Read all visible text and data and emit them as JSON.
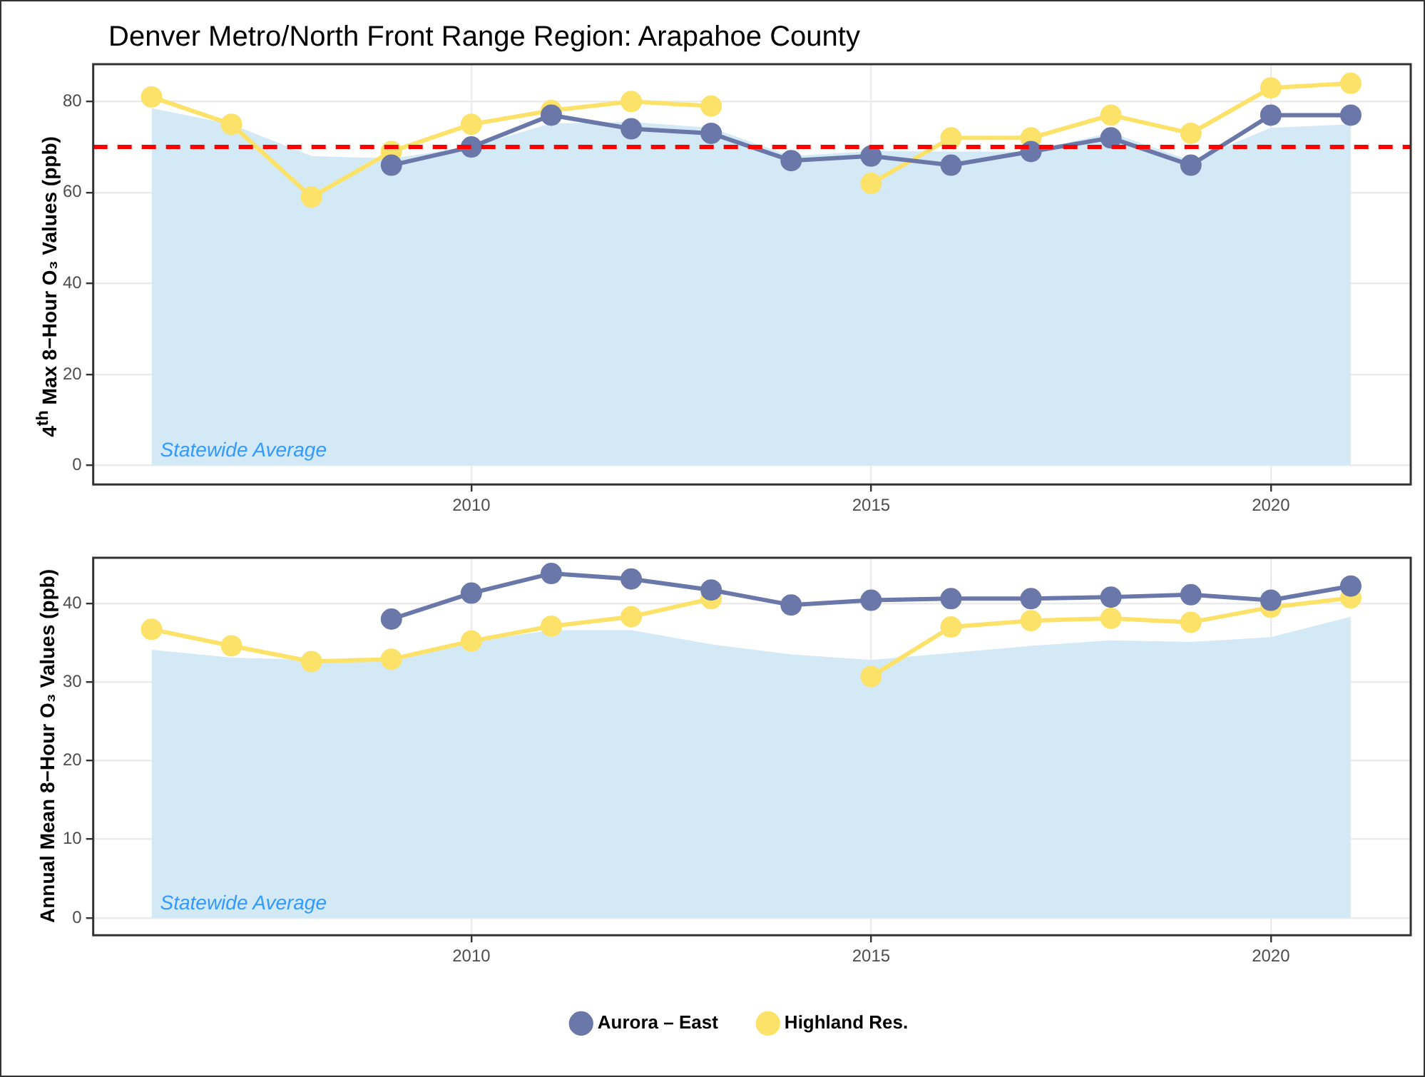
{
  "chart_data": [
    {
      "type": "line",
      "title": "Denver Metro/North Front Range Region: Arapahoe County",
      "ylabel": "4$^{th}$ Max 8−Hour O₃ Values (ppb)",
      "x": [
        2006,
        2007,
        2008,
        2009,
        2010,
        2011,
        2012,
        2013,
        2014,
        2015,
        2016,
        2017,
        2018,
        2019,
        2020,
        2021
      ],
      "xlim": [
        2005.27,
        2021.75
      ],
      "xticks": [
        2010,
        2015,
        2020
      ],
      "ylim": [
        -4.2,
        88.2
      ],
      "yticks": [
        0,
        20,
        40,
        60,
        80
      ],
      "grid": true,
      "legend": false,
      "marker": "circle",
      "line_style": "solid",
      "series": [
        {
          "type": "area",
          "name": "Statewide Average",
          "marker": "none",
          "color": "#d3eaf6",
          "values": [
            78.5,
            75,
            68,
            67.5,
            70,
            75.2,
            75.5,
            74.2,
            68,
            69.1,
            69,
            69,
            73.2,
            67,
            74.2,
            75
          ]
        },
        {
          "color": "#6a77a9",
          "values": [
            null,
            null,
            null,
            66,
            70,
            77,
            74,
            73,
            67,
            68,
            66,
            69,
            72,
            66,
            77,
            77
          ]
        },
        {
          "color": "#fde26a",
          "values": [
            81,
            75,
            59,
            69,
            75,
            78,
            80,
            79,
            null,
            62,
            72,
            72,
            77,
            73,
            83,
            84
          ]
        }
      ],
      "ref_lines": [
        {
          "axis": "y",
          "value": 70,
          "color": "#ff0000",
          "line_style": "dashed"
        }
      ]
    },
    {
      "type": "line",
      "ylabel": "Annual Mean 8−Hour O₃ Values (ppb)",
      "x": [
        2006,
        2007,
        2008,
        2009,
        2010,
        2011,
        2012,
        2013,
        2014,
        2015,
        2016,
        2017,
        2018,
        2019,
        2020,
        2021
      ],
      "xlim": [
        2005.27,
        2021.75
      ],
      "xticks": [
        2010,
        2015,
        2020
      ],
      "ylim": [
        -2.2,
        45.8
      ],
      "yticks": [
        0,
        10,
        20,
        30,
        40
      ],
      "grid": true,
      "legend": "bottom",
      "marker": "circle",
      "line_style": "solid",
      "series": [
        {
          "type": "area",
          "name": "Statewide Average",
          "marker": "none",
          "color": "#d3eaf6",
          "values": [
            34.1,
            33.1,
            32.8,
            33,
            35.1,
            36.6,
            36.6,
            34.8,
            33.5,
            32.8,
            33.7,
            34.6,
            35.3,
            35.1,
            35.7,
            38.3
          ]
        },
        {
          "name": "Aurora – East",
          "color": "#6a77a9",
          "values": [
            null,
            null,
            null,
            38,
            41.3,
            43.8,
            43.1,
            41.7,
            39.8,
            40.4,
            40.6,
            40.6,
            40.8,
            41.1,
            40.4,
            42.2
          ]
        },
        {
          "name": "Highland Res.",
          "color": "#fde26a",
          "values": [
            36.7,
            34.6,
            32.6,
            32.9,
            35.2,
            37.1,
            38.3,
            40.6,
            null,
            30.7,
            37,
            37.8,
            38.1,
            37.6,
            39.5,
            40.7
          ]
        }
      ]
    }
  ]
}
